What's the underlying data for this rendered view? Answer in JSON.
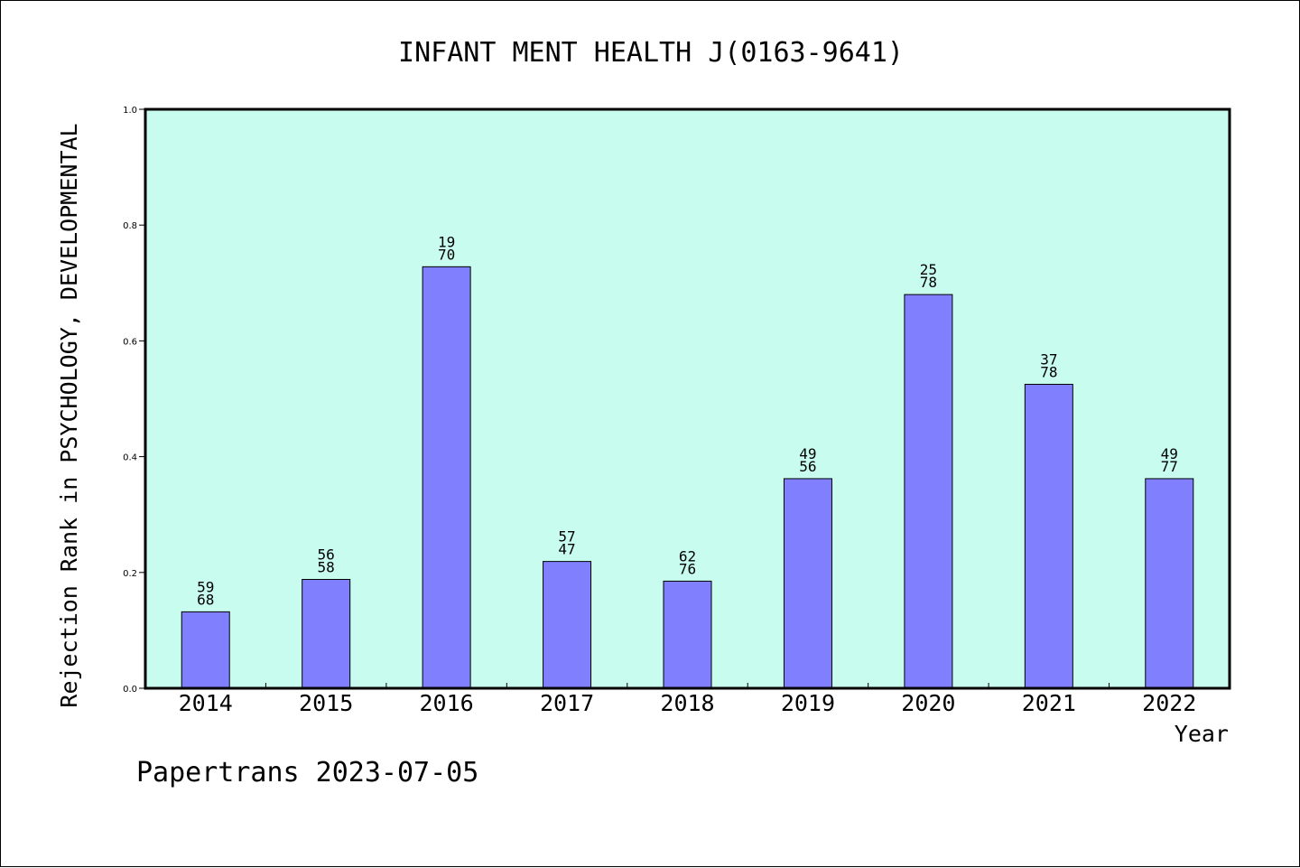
{
  "chart_data": {
    "type": "bar",
    "title": "INFANT MENT HEALTH J(0163-9641)",
    "xlabel": "Year",
    "ylabel": "Rejection Rank in PSYCHOLOGY, DEVELOPMENTAL",
    "ylim": [
      0.0,
      1.0
    ],
    "yticks": [
      "0.0",
      "0.2",
      "0.4",
      "0.6",
      "0.8",
      "1.0"
    ],
    "grid": false,
    "categories": [
      "2014",
      "2015",
      "2016",
      "2017",
      "2018",
      "2019",
      "2020",
      "2021",
      "2022"
    ],
    "values": [
      0.132,
      0.188,
      0.728,
      0.219,
      0.185,
      0.362,
      0.68,
      0.525,
      0.362
    ],
    "bar_labels": [
      [
        "59",
        "68"
      ],
      [
        "56",
        "58"
      ],
      [
        "19",
        "70"
      ],
      [
        "57",
        "47"
      ],
      [
        "62",
        "76"
      ],
      [
        "49",
        "56"
      ],
      [
        "25",
        "78"
      ],
      [
        "37",
        "78"
      ],
      [
        "49",
        "77"
      ]
    ],
    "colors": {
      "plot_background": "#c8fcee",
      "bar_fill": "#8080ff",
      "bar_stroke": "#000000",
      "axis": "#000000"
    }
  },
  "footer": {
    "text": "Papertrans 2023-07-05"
  }
}
